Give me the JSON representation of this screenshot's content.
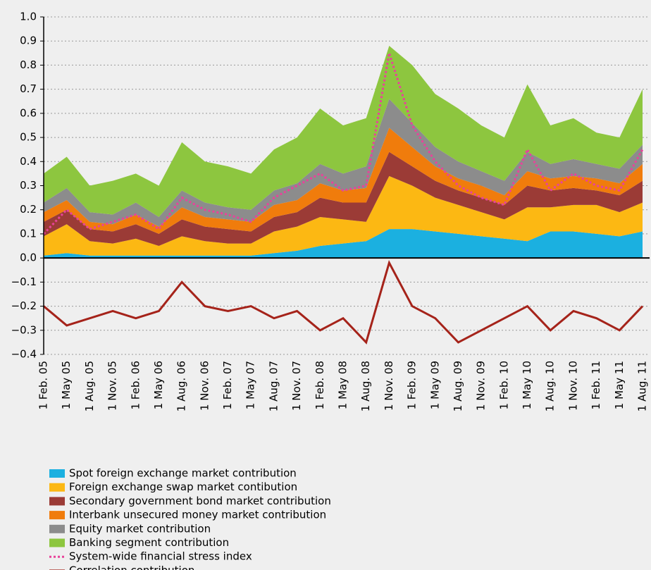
{
  "chart_data": {
    "type": "area",
    "categories": [
      "1 Feb. 05",
      "1 May 05",
      "1 Aug. 05",
      "1 Nov. 05",
      "1 Feb. 06",
      "1 May 06",
      "1 Aug. 06",
      "1 Nov. 06",
      "1 Feb. 07",
      "1 May 07",
      "1 Aug. 07",
      "1 Nov. 07",
      "1 Feb. 08",
      "1 May 08",
      "1 Aug. 08",
      "1 Nov. 08",
      "1 Feb. 09",
      "1 May 09",
      "1 Aug. 09",
      "1 Nov. 09",
      "1 Feb. 10",
      "1 May 10",
      "1 Aug. 10",
      "1 Nov. 10",
      "1 Feb. 11",
      "1 May 11",
      "1 Aug. 11"
    ],
    "series": [
      {
        "name": "Spot foreign exchange market contribution",
        "type": "area",
        "color": "#1bb0e0",
        "values": [
          0.01,
          0.02,
          0.01,
          0.01,
          0.01,
          0.01,
          0.01,
          0.01,
          0.01,
          0.01,
          0.02,
          0.03,
          0.05,
          0.06,
          0.07,
          0.12,
          0.12,
          0.11,
          0.1,
          0.09,
          0.08,
          0.07,
          0.11,
          0.11,
          0.1,
          0.09,
          0.11
        ]
      },
      {
        "name": "Foreign exchange swap market contibution",
        "type": "area",
        "color": "#fcb813",
        "values": [
          0.08,
          0.12,
          0.06,
          0.05,
          0.07,
          0.04,
          0.08,
          0.06,
          0.05,
          0.05,
          0.09,
          0.1,
          0.12,
          0.1,
          0.08,
          0.22,
          0.18,
          0.14,
          0.12,
          0.1,
          0.08,
          0.14,
          0.1,
          0.11,
          0.12,
          0.1,
          0.12
        ]
      },
      {
        "name": "Secondary government bond market contribution",
        "type": "area",
        "color": "#9b3b36",
        "values": [
          0.06,
          0.06,
          0.05,
          0.05,
          0.06,
          0.05,
          0.07,
          0.06,
          0.06,
          0.05,
          0.06,
          0.06,
          0.08,
          0.07,
          0.08,
          0.1,
          0.08,
          0.07,
          0.06,
          0.06,
          0.06,
          0.09,
          0.07,
          0.07,
          0.06,
          0.07,
          0.09
        ]
      },
      {
        "name": "Interbank unsecured money market contribution",
        "type": "area",
        "color": "#f07c0c",
        "values": [
          0.04,
          0.04,
          0.03,
          0.03,
          0.04,
          0.03,
          0.05,
          0.04,
          0.04,
          0.04,
          0.05,
          0.05,
          0.06,
          0.05,
          0.06,
          0.1,
          0.08,
          0.06,
          0.05,
          0.05,
          0.04,
          0.06,
          0.05,
          0.05,
          0.05,
          0.05,
          0.07
        ]
      },
      {
        "name": "Equity market contribution",
        "type": "area",
        "color": "#8c8c8c",
        "values": [
          0.04,
          0.05,
          0.04,
          0.04,
          0.05,
          0.04,
          0.07,
          0.06,
          0.05,
          0.05,
          0.06,
          0.07,
          0.08,
          0.07,
          0.09,
          0.12,
          0.1,
          0.08,
          0.07,
          0.06,
          0.06,
          0.08,
          0.06,
          0.07,
          0.06,
          0.06,
          0.08
        ]
      },
      {
        "name": "Banking segment contribution",
        "type": "area",
        "color": "#8dc63f",
        "values": [
          0.12,
          0.13,
          0.11,
          0.14,
          0.12,
          0.13,
          0.2,
          0.17,
          0.17,
          0.15,
          0.17,
          0.19,
          0.23,
          0.2,
          0.2,
          0.22,
          0.24,
          0.22,
          0.22,
          0.19,
          0.18,
          0.28,
          0.16,
          0.17,
          0.13,
          0.13,
          0.23
        ]
      },
      {
        "name": "System-wide financial stress index",
        "type": "line",
        "dotted": true,
        "color": "#e8439a",
        "values": [
          0.1,
          0.2,
          0.12,
          0.15,
          0.18,
          0.12,
          0.25,
          0.2,
          0.18,
          0.15,
          0.25,
          0.3,
          0.35,
          0.28,
          0.3,
          0.85,
          0.55,
          0.4,
          0.3,
          0.25,
          0.22,
          0.45,
          0.28,
          0.35,
          0.3,
          0.28,
          0.45
        ]
      },
      {
        "name": "Correlation contribution",
        "type": "line",
        "dotted": false,
        "color": "#a5231a",
        "values": [
          -0.2,
          -0.28,
          -0.25,
          -0.22,
          -0.25,
          -0.22,
          -0.1,
          -0.2,
          -0.22,
          -0.2,
          -0.25,
          -0.22,
          -0.3,
          -0.25,
          -0.35,
          -0.02,
          -0.2,
          -0.25,
          -0.35,
          -0.3,
          -0.25,
          -0.2,
          -0.3,
          -0.22,
          -0.25,
          -0.3,
          -0.2
        ]
      }
    ],
    "ylim": [
      -0.4,
      1.0
    ],
    "yticks": [
      {
        "value": -0.4,
        "label": "−0.4"
      },
      {
        "value": -0.3,
        "label": "−0.3"
      },
      {
        "value": -0.2,
        "label": "−0.2"
      },
      {
        "value": -0.1,
        "label": "−0.1"
      },
      {
        "value": 0,
        "label": "0.0"
      },
      0.1,
      0.2,
      0.3,
      0.4,
      0.5,
      0.6,
      0.7,
      0.8,
      0.9,
      {
        "value": 1.0,
        "label": "1.0"
      }
    ],
    "grid": true,
    "legend": "bottom"
  }
}
